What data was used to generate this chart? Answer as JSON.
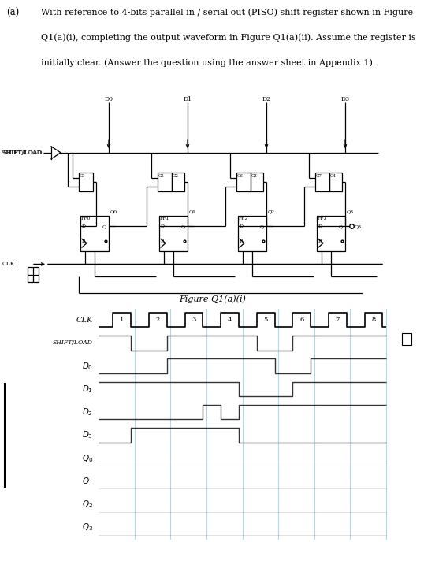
{
  "bg_color": "#ffffff",
  "clk_color": "#000000",
  "grid_color": "#add8e6",
  "waveform_color": "#333333",
  "figure_label": "Figure Q1(a)(i)",
  "text_line1": "With reference to 4-bits parallel in / serial out (PISO) shift register shown in Figure",
  "text_line2": "Q1(a)(i), completing the output waveform in Figure Q1(a)(ii). Assume the register is",
  "text_line3": "initially clear. (Answer the question using the answer sheet in Appendix 1).",
  "clk_transitions": [
    0,
    0,
    0.4,
    1,
    0.9,
    0,
    1.4,
    1,
    1.9,
    0,
    2.4,
    1,
    2.9,
    0,
    3.4,
    1,
    3.9,
    0,
    4.4,
    1,
    4.9,
    0,
    5.4,
    1,
    5.9,
    0,
    6.4,
    1,
    6.9,
    0,
    7.4,
    1,
    7.9,
    0
  ],
  "sl_transitions": [
    0,
    1,
    0.9,
    0,
    1.9,
    1,
    4.4,
    0,
    5.4,
    1
  ],
  "d0_transitions": [
    0,
    0,
    1.9,
    1,
    4.9,
    0,
    5.9,
    1
  ],
  "d1_transitions": [
    0,
    1,
    3.9,
    0,
    5.4,
    1
  ],
  "d2_transitions": [
    0,
    0,
    2.9,
    1,
    3.4,
    0,
    3.9,
    1
  ],
  "d3_transitions": [
    0,
    0,
    0.9,
    1,
    3.9,
    0
  ],
  "clk_pulse_labels": [
    "1",
    "2",
    "3",
    "4",
    "5",
    "6",
    "7",
    "8"
  ],
  "clk_pulse_x": [
    0.65,
    1.65,
    2.65,
    3.65,
    4.65,
    5.65,
    6.65,
    7.65
  ]
}
